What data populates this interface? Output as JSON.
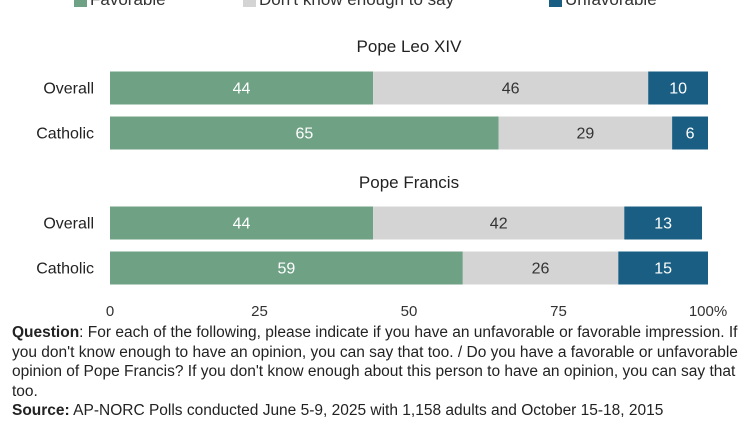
{
  "legend": [
    {
      "label": "Favorable",
      "color": "#6fa285"
    },
    {
      "label": "Don't know enough to say",
      "color": "#d4d4d4"
    },
    {
      "label": "Unfavorable",
      "color": "#1a5f83"
    }
  ],
  "chart_data": {
    "type": "bar",
    "orientation": "horizontal",
    "stacked": true,
    "xlim": [
      0,
      100
    ],
    "xticks": [
      "0",
      "25",
      "50",
      "75",
      "100%"
    ],
    "groups": [
      {
        "title": "Pope Leo XIV",
        "rows": [
          {
            "label": "Overall",
            "values": [
              44,
              46,
              10
            ]
          },
          {
            "label": "Catholic",
            "values": [
              65,
              29,
              6
            ]
          }
        ]
      },
      {
        "title": "Pope Francis",
        "rows": [
          {
            "label": "Overall",
            "values": [
              44,
              42,
              13
            ]
          },
          {
            "label": "Catholic",
            "values": [
              59,
              26,
              15
            ]
          }
        ]
      }
    ]
  },
  "footnote": {
    "question_label": "Question",
    "question_text": ": For each of the following, please indicate if you have an unfavorable or favorable impression. If you don't know enough to have an opinion, you can say that too. / Do you have a favorable or unfavorable opinion of Pope Francis? If you don't know enough about this person to have an opinion, you can say that too.",
    "source_label": "Source:",
    "source_text": " AP-NORC Polls conducted June 5-9, 2025 with 1,158 adults and October 15-18, 2015"
  }
}
